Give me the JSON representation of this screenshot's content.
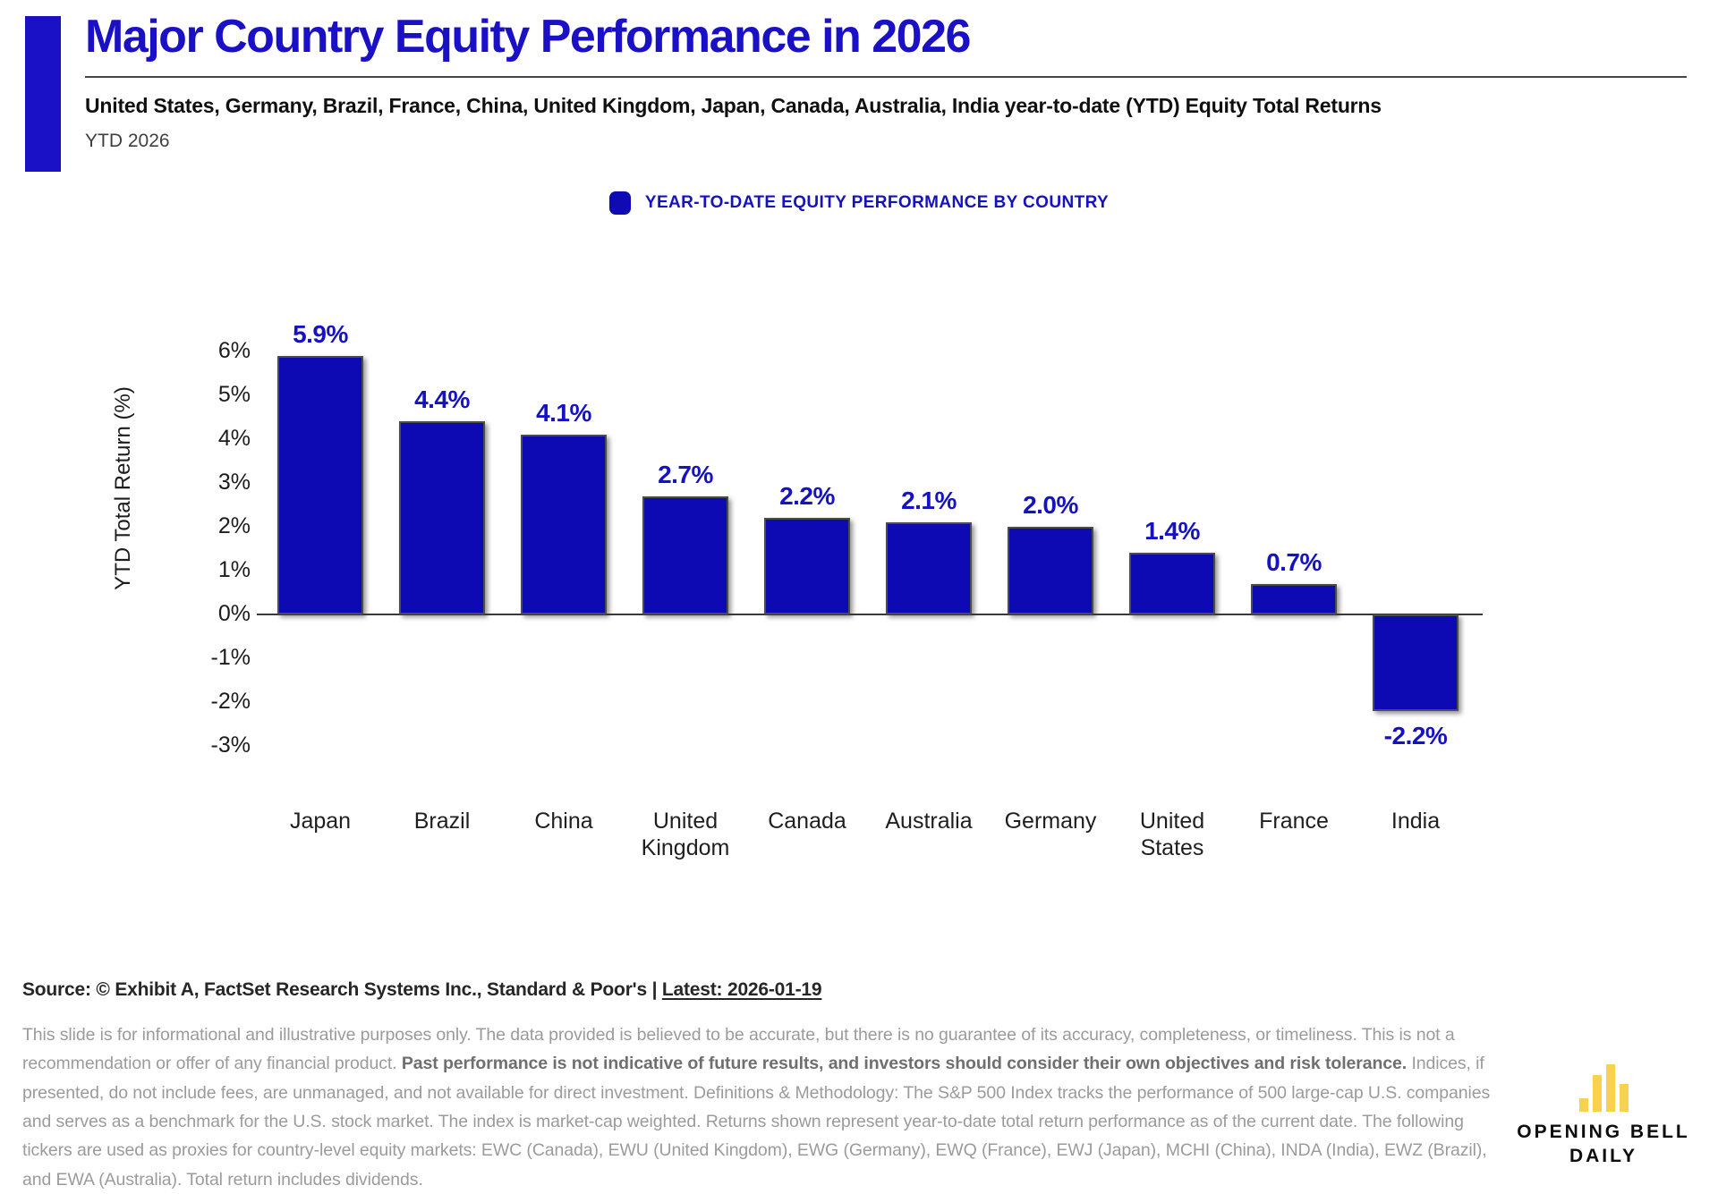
{
  "header": {
    "title": "Major Country Equity Performance in 2026",
    "subtitle": "United States, Germany, Brazil, France, China, United Kingdom, Japan, Canada, Australia, India year-to-date (YTD) Equity Total Returns",
    "period": "YTD 2026"
  },
  "legend": {
    "label": "YEAR-TO-DATE EQUITY PERFORMANCE BY COUNTRY"
  },
  "chart_data": {
    "type": "bar",
    "categories": [
      "Japan",
      "Brazil",
      "China",
      "United Kingdom",
      "Canada",
      "Australia",
      "Germany",
      "United States",
      "France",
      "India"
    ],
    "values": [
      5.9,
      4.4,
      4.1,
      2.7,
      2.2,
      2.1,
      2.0,
      1.4,
      0.7,
      -2.2
    ],
    "value_labels": [
      "5.9%",
      "4.4%",
      "4.1%",
      "2.7%",
      "2.2%",
      "2.1%",
      "2.0%",
      "1.4%",
      "0.7%",
      "-2.2%"
    ],
    "title": "YEAR-TO-DATE EQUITY PERFORMANCE BY COUNTRY",
    "xlabel": "",
    "ylabel": "YTD Total Return (%)",
    "ylim": [
      -3,
      6
    ],
    "ytick_values": [
      6,
      5,
      4,
      3,
      2,
      1,
      0,
      -1,
      -2,
      -3
    ],
    "ytick_labels": [
      "6%",
      "5%",
      "4%",
      "3%",
      "2%",
      "1%",
      "0%",
      "-1%",
      "-2%",
      "-3%"
    ],
    "grid": false,
    "legend_position": "top-center",
    "bar_color": "#0d09b3",
    "label_color": "#1512c4"
  },
  "footer": {
    "source_prefix": "Source: © Exhibit A, FactSet Research Systems Inc., Standard & Poor's | ",
    "latest": "Latest: 2026-01-19",
    "disclaimer_part1": "This slide is for informational and illustrative purposes only. The data provided is believed to be accurate, but there is no guarantee of its accuracy, completeness, or timeliness. This is not a recommendation or offer of any financial product. ",
    "disclaimer_bold": "Past performance is not indicative of future results, and investors should consider their own objectives and risk tolerance.",
    "disclaimer_part2": " Indices, if presented, do not include fees, are unmanaged, and not available for direct investment. Definitions & Methodology: The S&P 500 Index tracks the performance of 500 large-cap U.S. companies and serves as a benchmark for the U.S. stock market. The index is market-cap weighted. Returns shown represent year-to-date total return performance as of the current date. The following tickers are used as proxies for country-level equity markets: EWC (Canada), EWU (United Kingdom), EWG (Germany), EWQ (France), EWJ (Japan), MCHI (China), INDA (India), EWZ (Brazil), and EWA (Australia). Total return includes dividends."
  },
  "logo": {
    "line1": "OPENING BELL",
    "line2": "DAILY"
  },
  "colors": {
    "brand_blue": "#1a10c6",
    "bar_blue": "#0d09b3",
    "logo_yellow": "#f8d14e",
    "disclaimer_gray": "#9b9b9b"
  }
}
